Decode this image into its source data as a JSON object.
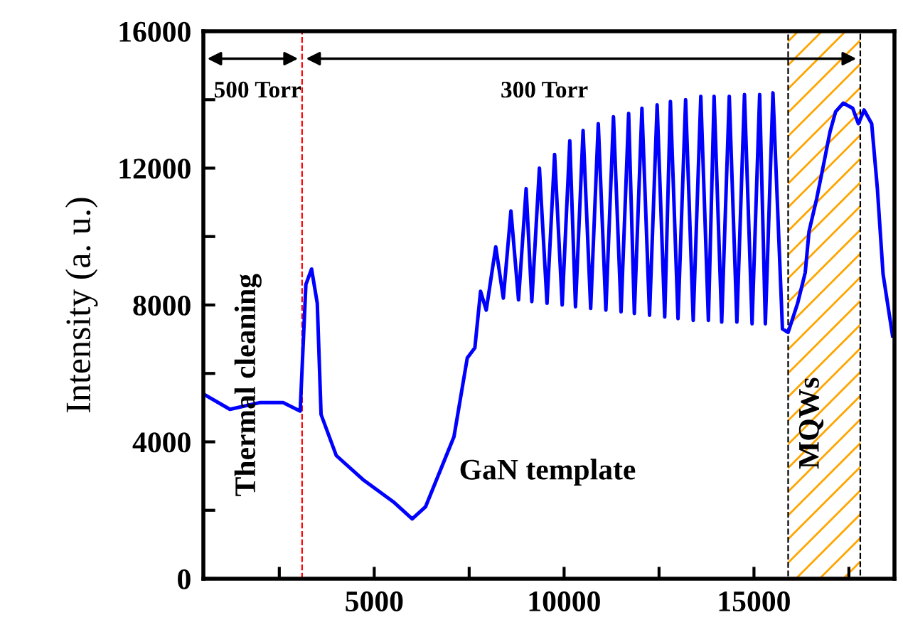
{
  "chart_data": {
    "type": "line",
    "ylabel": "Intensity (a. u.)",
    "xlim": [
      500,
      18700
    ],
    "xticks": [
      {
        "value": 2500,
        "label": null
      },
      5000,
      {
        "value": 7500,
        "label": null
      },
      10000,
      {
        "value": 12500,
        "label": null
      },
      15000,
      {
        "value": 17500,
        "label": null
      }
    ],
    "ylim": [
      0,
      16000
    ],
    "yticks": [
      0,
      {
        "value": 2000,
        "label": null
      },
      4000,
      {
        "value": 6000,
        "label": null
      },
      8000,
      {
        "value": 10000,
        "label": null
      },
      12000,
      {
        "value": 14000,
        "label": null
      },
      16000
    ],
    "grid": false,
    "legend": false,
    "marker": "none",
    "line_style": "solid",
    "series": [
      {
        "color": "#0000ff",
        "x": [
          500,
          1200,
          2000,
          2600,
          3050,
          3200,
          3350,
          3500,
          3600,
          4000,
          4700,
          5500,
          6000,
          6350,
          7100,
          7450,
          7650,
          7800,
          7950,
          8200,
          8400,
          8600,
          8800,
          9000,
          9150,
          9350,
          9550,
          9750,
          9950,
          10150,
          10300,
          10500,
          10700,
          10900,
          11100,
          11300,
          11500,
          11700,
          11850,
          12050,
          12250,
          12450,
          12650,
          12800,
          13000,
          13200,
          13400,
          13600,
          13800,
          13950,
          14150,
          14350,
          14550,
          14750,
          14950,
          15150,
          15300,
          15500,
          15750,
          15900,
          16150,
          16350,
          16450,
          16650,
          16850,
          17000,
          17150,
          17350,
          17600,
          17750,
          17900,
          18100,
          18250,
          18400,
          18650
        ],
        "values": [
          5400,
          4950,
          5150,
          5150,
          4900,
          8600,
          9050,
          8050,
          4800,
          3600,
          2900,
          2250,
          1750,
          2100,
          4150,
          6450,
          6750,
          8400,
          7850,
          9700,
          8200,
          10750,
          8150,
          11400,
          8100,
          12000,
          8050,
          12400,
          8000,
          12800,
          7950,
          13100,
          7900,
          13300,
          7850,
          13500,
          7800,
          13600,
          7750,
          13750,
          7700,
          13850,
          7650,
          13950,
          7600,
          14000,
          7550,
          14100,
          7550,
          14100,
          7500,
          14100,
          7500,
          14150,
          7450,
          14150,
          7450,
          14200,
          7300,
          7200,
          8050,
          8950,
          10150,
          11100,
          12200,
          13050,
          13650,
          13900,
          13750,
          13300,
          13700,
          13300,
          11400,
          8900,
          7100
        ]
      }
    ],
    "ref_lines": [
      {
        "axis": "x",
        "value": 3100,
        "color": "#ff0000",
        "line_style": "dashed"
      }
    ],
    "bands": [
      {
        "axis": "x",
        "from": 15900,
        "to": 17800,
        "color": "#ffa500"
      }
    ],
    "annotations": [
      "500 Torr",
      "300 Torr",
      "Thermal cleaning",
      "GaN template",
      "MQWs"
    ]
  }
}
